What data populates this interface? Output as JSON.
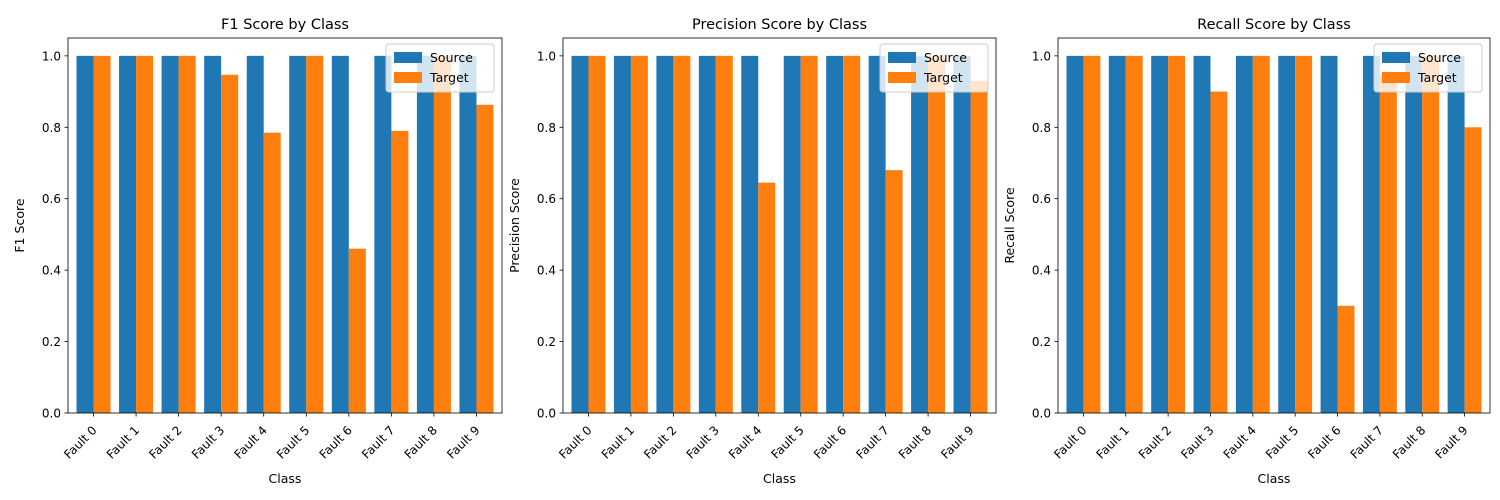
{
  "chart_data": [
    {
      "type": "bar",
      "title": "F1 Score by Class",
      "xlabel": "Class",
      "ylabel": "F1 Score",
      "ylim": [
        0,
        1.05
      ],
      "yticks": [
        "0.0",
        "0.2",
        "0.4",
        "0.6",
        "0.8",
        "1.0"
      ],
      "categories": [
        "Fault 0",
        "Fault 1",
        "Fault 2",
        "Fault 3",
        "Fault 4",
        "Fault 5",
        "Fault 6",
        "Fault 7",
        "Fault 8",
        "Fault 9"
      ],
      "series": [
        {
          "name": "Source",
          "color": "#1f77b4",
          "values": [
            1.0,
            1.0,
            1.0,
            1.0,
            1.0,
            1.0,
            1.0,
            1.0,
            1.0,
            1.0
          ]
        },
        {
          "name": "Target",
          "color": "#ff7f0e",
          "values": [
            1.0,
            1.0,
            1.0,
            0.947,
            0.785,
            1.0,
            0.46,
            0.79,
            1.0,
            0.863
          ]
        }
      ],
      "legend": "upper right"
    },
    {
      "type": "bar",
      "title": "Precision Score by Class",
      "xlabel": "Class",
      "ylabel": "Precision Score",
      "ylim": [
        0,
        1.05
      ],
      "yticks": [
        "0.0",
        "0.2",
        "0.4",
        "0.6",
        "0.8",
        "1.0"
      ],
      "categories": [
        "Fault 0",
        "Fault 1",
        "Fault 2",
        "Fault 3",
        "Fault 4",
        "Fault 5",
        "Fault 6",
        "Fault 7",
        "Fault 8",
        "Fault 9"
      ],
      "series": [
        {
          "name": "Source",
          "color": "#1f77b4",
          "values": [
            1.0,
            1.0,
            1.0,
            1.0,
            1.0,
            1.0,
            1.0,
            1.0,
            1.0,
            1.0
          ]
        },
        {
          "name": "Target",
          "color": "#ff7f0e",
          "values": [
            1.0,
            1.0,
            1.0,
            1.0,
            0.645,
            1.0,
            1.0,
            0.68,
            1.0,
            0.93
          ]
        }
      ],
      "legend": "upper right"
    },
    {
      "type": "bar",
      "title": "Recall Score by Class",
      "xlabel": "Class",
      "ylabel": "Recall Score",
      "ylim": [
        0,
        1.05
      ],
      "yticks": [
        "0.0",
        "0.2",
        "0.4",
        "0.6",
        "0.8",
        "1.0"
      ],
      "categories": [
        "Fault 0",
        "Fault 1",
        "Fault 2",
        "Fault 3",
        "Fault 4",
        "Fault 5",
        "Fault 6",
        "Fault 7",
        "Fault 8",
        "Fault 9"
      ],
      "series": [
        {
          "name": "Source",
          "color": "#1f77b4",
          "values": [
            1.0,
            1.0,
            1.0,
            1.0,
            1.0,
            1.0,
            1.0,
            1.0,
            1.0,
            1.0
          ]
        },
        {
          "name": "Target",
          "color": "#ff7f0e",
          "values": [
            1.0,
            1.0,
            1.0,
            0.9,
            1.0,
            1.0,
            0.3,
            0.95,
            1.0,
            0.8
          ]
        }
      ],
      "legend": "upper right"
    }
  ]
}
